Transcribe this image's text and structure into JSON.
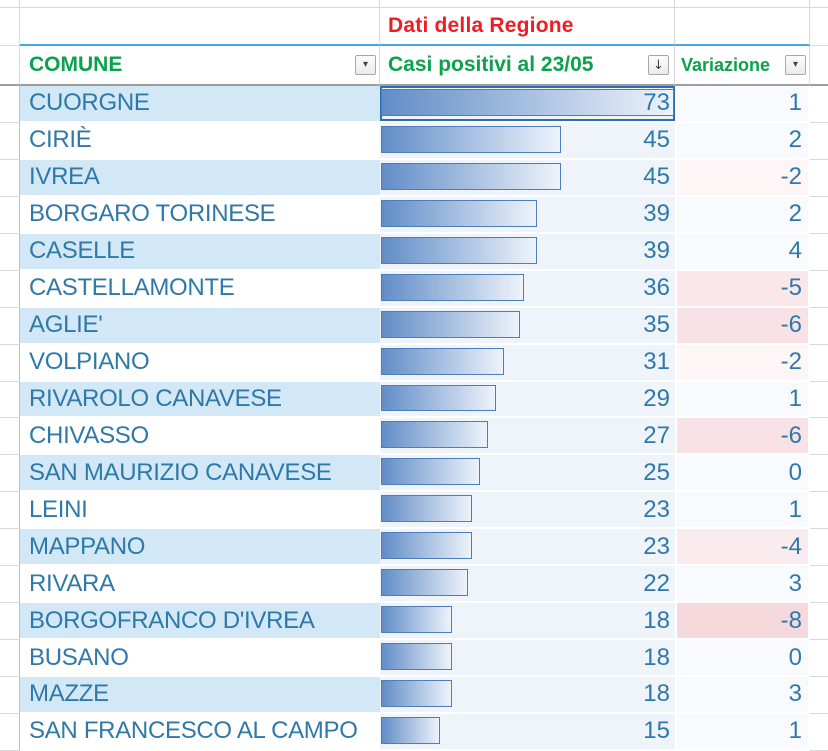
{
  "sheet": {
    "title": "Dati della Regione",
    "headers": {
      "comune": "COMUNE",
      "casi": "Casi positivi al 23/05",
      "variazione": "Variazione"
    },
    "filter_icons": {
      "comune_dropdown": "▾",
      "casi_sort_desc": "↓",
      "variazione_dropdown": "▾"
    }
  },
  "colors": {
    "title_red": "#ee1c25",
    "header_green": "#0ba24c",
    "text_blue": "#2e79a8",
    "row_stripe_blue": "#d2e8f6",
    "bar_fill_start": "#618dc7",
    "bar_border": "#4d7dbb",
    "bar_cell_bg": "#eff3fa",
    "negative_pink_max": "#f4d8dc",
    "selection_border": "#2a6fb5"
  },
  "chart_data": {
    "type": "table",
    "title": "Dati della Regione",
    "columns": [
      "COMUNE",
      "Casi positivi al 23/05",
      "Variazione"
    ],
    "notes": "in-cell data bars scaled to max value; negative Variazione shaded pink by magnitude",
    "max_value": 73,
    "rows": [
      {
        "comune": "CUORGNE",
        "casi": 73,
        "variazione": 1
      },
      {
        "comune": "CIRIÈ",
        "casi": 45,
        "variazione": 2
      },
      {
        "comune": "IVREA",
        "casi": 45,
        "variazione": -2
      },
      {
        "comune": "BORGARO TORINESE",
        "casi": 39,
        "variazione": 2
      },
      {
        "comune": "CASELLE",
        "casi": 39,
        "variazione": 4
      },
      {
        "comune": "CASTELLAMONTE",
        "casi": 36,
        "variazione": -5
      },
      {
        "comune": "AGLIE'",
        "casi": 35,
        "variazione": -6
      },
      {
        "comune": "VOLPIANO",
        "casi": 31,
        "variazione": -2
      },
      {
        "comune": "RIVAROLO CANAVESE",
        "casi": 29,
        "variazione": 1
      },
      {
        "comune": "CHIVASSO",
        "casi": 27,
        "variazione": -6
      },
      {
        "comune": "SAN MAURIZIO CANAVESE",
        "casi": 25,
        "variazione": 0
      },
      {
        "comune": "LEINI",
        "casi": 23,
        "variazione": 1
      },
      {
        "comune": "MAPPANO",
        "casi": 23,
        "variazione": -4
      },
      {
        "comune": "RIVARA",
        "casi": 22,
        "variazione": 3
      },
      {
        "comune": "BORGOFRANCO D'IVREA",
        "casi": 18,
        "variazione": -8
      },
      {
        "comune": "BUSANO",
        "casi": 18,
        "variazione": 0
      },
      {
        "comune": "MAZZE",
        "casi": 18,
        "variazione": 3
      },
      {
        "comune": "SAN FRANCESCO AL CAMPO",
        "casi": 15,
        "variazione": 1
      }
    ]
  }
}
